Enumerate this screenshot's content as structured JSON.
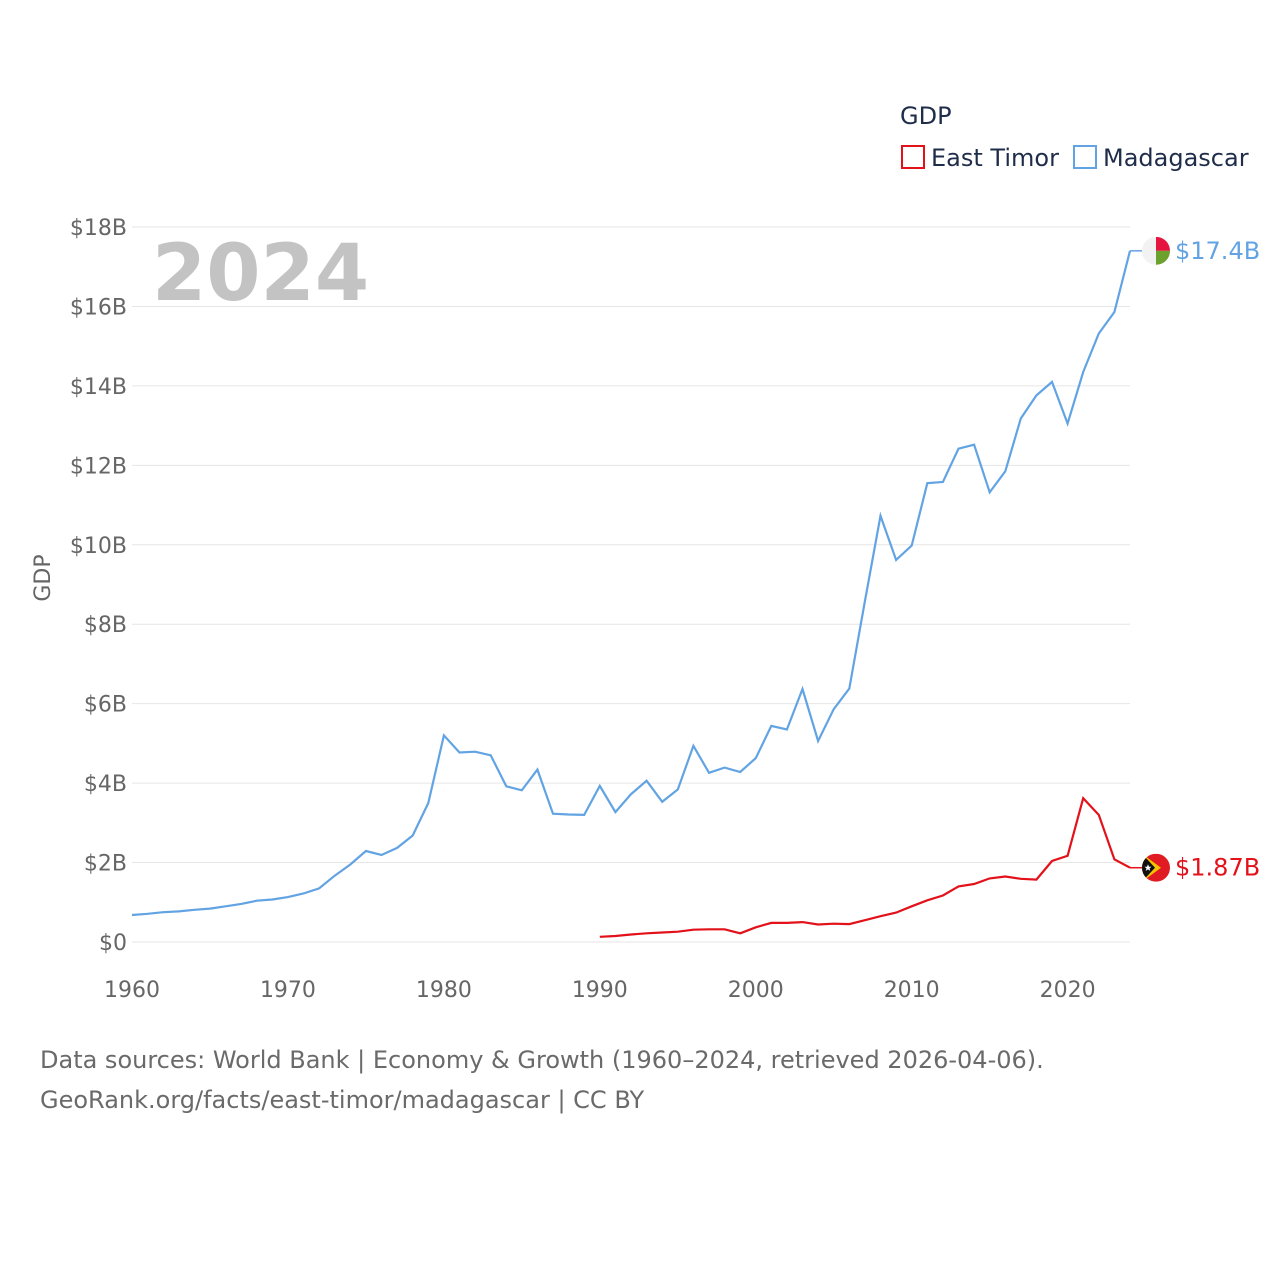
{
  "chart_data": {
    "type": "line",
    "legend_title": "GDP",
    "year_label": "2024",
    "ylabel": "GDP",
    "xlim": [
      1960,
      2024
    ],
    "ylim": [
      0,
      18
    ],
    "y_unit": "billion USD",
    "x_ticks": [
      "1960",
      "1970",
      "1980",
      "1990",
      "2000",
      "2010",
      "2020"
    ],
    "y_ticks": [
      "$0",
      "$2B",
      "$4B",
      "$6B",
      "$8B",
      "$10B",
      "$12B",
      "$14B",
      "$16B",
      "$18B"
    ],
    "grid": true,
    "legend_position": "top-right",
    "series": [
      {
        "name": "East Timor",
        "color": "#e3111a",
        "end_label": "$1.87B",
        "flag_icon": "east-timor-flag-icon",
        "x": [
          1990,
          1991,
          1992,
          1993,
          1994,
          1995,
          1996,
          1997,
          1998,
          1999,
          2000,
          2001,
          2002,
          2003,
          2004,
          2005,
          2006,
          2007,
          2008,
          2009,
          2010,
          2011,
          2012,
          2013,
          2014,
          2015,
          2016,
          2017,
          2018,
          2019,
          2020,
          2021,
          2022,
          2023,
          2024
        ],
        "values": [
          0.13,
          0.15,
          0.19,
          0.22,
          0.24,
          0.26,
          0.31,
          0.32,
          0.32,
          0.22,
          0.37,
          0.48,
          0.48,
          0.5,
          0.44,
          0.46,
          0.45,
          0.55,
          0.65,
          0.74,
          0.9,
          1.05,
          1.17,
          1.4,
          1.46,
          1.6,
          1.65,
          1.59,
          1.57,
          2.04,
          2.17,
          3.62,
          3.2,
          2.08,
          1.87
        ]
      },
      {
        "name": "Madagascar",
        "color": "#62a3e3",
        "end_label": "$17.4B",
        "flag_icon": "madagascar-flag-icon",
        "x": [
          1960,
          1961,
          1962,
          1963,
          1964,
          1965,
          1966,
          1967,
          1968,
          1969,
          1970,
          1971,
          1972,
          1973,
          1974,
          1975,
          1976,
          1977,
          1978,
          1979,
          1980,
          1981,
          1982,
          1983,
          1984,
          1985,
          1986,
          1987,
          1988,
          1989,
          1990,
          1991,
          1992,
          1993,
          1994,
          1995,
          1996,
          1997,
          1998,
          1999,
          2000,
          2001,
          2002,
          2003,
          2004,
          2005,
          2006,
          2007,
          2008,
          2009,
          2010,
          2011,
          2012,
          2013,
          2014,
          2015,
          2016,
          2017,
          2018,
          2019,
          2020,
          2021,
          2022,
          2023,
          2024
        ],
        "values": [
          0.68,
          0.71,
          0.75,
          0.77,
          0.81,
          0.84,
          0.9,
          0.96,
          1.04,
          1.07,
          1.13,
          1.22,
          1.35,
          1.67,
          1.95,
          2.29,
          2.19,
          2.37,
          2.68,
          3.5,
          5.2,
          4.77,
          4.79,
          4.7,
          3.92,
          3.82,
          4.34,
          3.23,
          3.21,
          3.2,
          3.93,
          3.27,
          3.72,
          4.06,
          3.53,
          3.84,
          4.94,
          4.26,
          4.39,
          4.28,
          4.63,
          5.44,
          5.35,
          6.37,
          5.06,
          5.86,
          6.38,
          8.58,
          10.73,
          9.62,
          9.98,
          11.55,
          11.58,
          12.42,
          12.52,
          11.32,
          11.85,
          13.18,
          13.76,
          14.1,
          13.05,
          14.35,
          15.32,
          15.86,
          17.4
        ]
      }
    ],
    "source_line_1": "Data sources: World Bank | Economy & Growth (1960–2024, retrieved 2026-04-06).",
    "source_line_2": "GeoRank.org/facts/east-timor/madagascar | CC BY"
  }
}
